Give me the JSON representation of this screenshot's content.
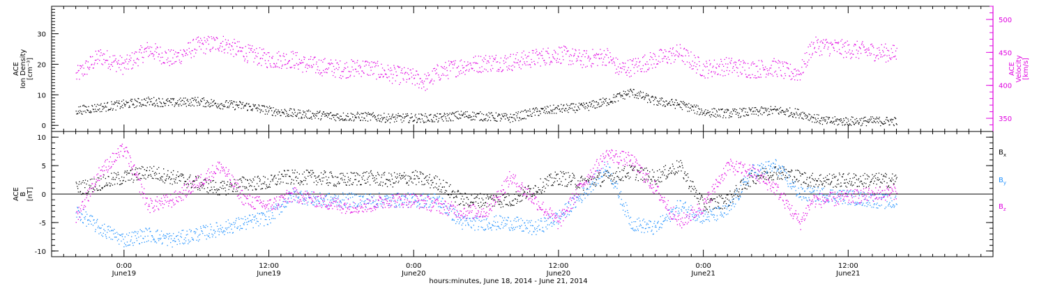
{
  "chart_data": [
    {
      "type": "scatter",
      "panel": "top",
      "left_axis": {
        "label_lines": [
          "ACE",
          "Ion Density",
          "[cm⁻³]"
        ],
        "ylim": [
          -2,
          39
        ],
        "ticks": [
          0,
          10,
          20,
          30
        ],
        "color": "#000000"
      },
      "right_axis": {
        "label_lines": [
          "ACE",
          "Velocity",
          "[km/s]"
        ],
        "ylim": [
          330,
          520
        ],
        "ticks": [
          350,
          400,
          450,
          500
        ],
        "color": "#e000e0"
      },
      "series": [
        {
          "axis": "left",
          "color": "#000000",
          "points": [
            [
              -4,
              5
            ],
            [
              -2,
              6
            ],
            [
              0,
              7
            ],
            [
              2,
              8
            ],
            [
              4,
              7.5
            ],
            [
              6,
              8
            ],
            [
              8,
              7
            ],
            [
              10,
              6.5
            ],
            [
              12,
              5
            ],
            [
              14,
              4
            ],
            [
              16,
              3.5
            ],
            [
              18,
              3
            ],
            [
              20,
              3
            ],
            [
              22,
              2.5
            ],
            [
              24,
              2.5
            ],
            [
              26,
              2.5
            ],
            [
              28,
              3.5
            ],
            [
              30,
              3
            ],
            [
              32,
              2.5
            ],
            [
              34,
              4.5
            ],
            [
              36,
              5.5
            ],
            [
              38,
              6
            ],
            [
              40,
              8
            ],
            [
              42,
              11
            ],
            [
              44,
              8
            ],
            [
              46,
              7
            ],
            [
              48,
              4.5
            ],
            [
              50,
              4
            ],
            [
              52,
              4.5
            ],
            [
              54,
              5
            ],
            [
              56,
              4
            ],
            [
              58,
              1.5
            ],
            [
              60,
              1.5
            ],
            [
              62,
              1.5
            ],
            [
              64,
              1.5
            ]
          ]
        },
        {
          "axis": "right",
          "color": "#e000e0",
          "points": [
            [
              -4,
              415
            ],
            [
              -2,
              445
            ],
            [
              0,
              430
            ],
            [
              2,
              455
            ],
            [
              4,
              440
            ],
            [
              6,
              460
            ],
            [
              8,
              465
            ],
            [
              10,
              450
            ],
            [
              12,
              440
            ],
            [
              14,
              440
            ],
            [
              15,
              432
            ],
            [
              16,
              430
            ],
            [
              18,
              425
            ],
            [
              20,
              428
            ],
            [
              22,
              418
            ],
            [
              24,
              412
            ],
            [
              25,
              405
            ],
            [
              26,
              420
            ],
            [
              28,
              430
            ],
            [
              30,
              435
            ],
            [
              32,
              436
            ],
            [
              34,
              442
            ],
            [
              36,
              448
            ],
            [
              38,
              440
            ],
            [
              40,
              445
            ],
            [
              41,
              425
            ],
            [
              42,
              428
            ],
            [
              44,
              440
            ],
            [
              46,
              450
            ],
            [
              48,
              425
            ],
            [
              50,
              430
            ],
            [
              52,
              425
            ],
            [
              54,
              428
            ],
            [
              55,
              420
            ],
            [
              56,
              420
            ],
            [
              57,
              460
            ],
            [
              58,
              460
            ],
            [
              60,
              455
            ],
            [
              62,
              452
            ],
            [
              64,
              448
            ]
          ]
        }
      ]
    },
    {
      "type": "scatter",
      "panel": "bottom",
      "left_axis": {
        "label_lines": [
          "ACE",
          "B",
          "[nT]"
        ],
        "ylim": [
          -11,
          11
        ],
        "ticks": [
          -10,
          -5,
          0,
          5,
          10
        ],
        "color": "#000000"
      },
      "zero_line": true,
      "legend": [
        {
          "label": "B",
          "sub": "x",
          "color": "#000000"
        },
        {
          "label": "B",
          "sub": "y",
          "color": "#1e90ff"
        },
        {
          "label": "B",
          "sub": "z",
          "color": "#e000e0"
        }
      ],
      "series": [
        {
          "name": "Bx",
          "color": "#000000",
          "points": [
            [
              -4,
              1
            ],
            [
              -2,
              2
            ],
            [
              0,
              3
            ],
            [
              2,
              4
            ],
            [
              4,
              3
            ],
            [
              6,
              2
            ],
            [
              8,
              1
            ],
            [
              10,
              2
            ],
            [
              12,
              2
            ],
            [
              13,
              3
            ],
            [
              14,
              3
            ],
            [
              16,
              3
            ],
            [
              18,
              2.5
            ],
            [
              20,
              3
            ],
            [
              22,
              2.5
            ],
            [
              24,
              3
            ],
            [
              26,
              2
            ],
            [
              28,
              -1
            ],
            [
              30,
              -1
            ],
            [
              32,
              -1
            ],
            [
              34,
              1
            ],
            [
              36,
              3
            ],
            [
              38,
              2
            ],
            [
              40,
              3
            ],
            [
              42,
              4
            ],
            [
              44,
              3
            ],
            [
              46,
              5
            ],
            [
              48,
              -2
            ],
            [
              50,
              -1
            ],
            [
              52,
              3
            ],
            [
              54,
              4
            ],
            [
              56,
              3
            ],
            [
              57,
              2.5
            ],
            [
              58,
              2.5
            ],
            [
              60,
              2.5
            ],
            [
              62,
              2.5
            ],
            [
              64,
              2.5
            ]
          ]
        },
        {
          "name": "By",
          "color": "#1e90ff",
          "points": [
            [
              -4,
              -3
            ],
            [
              -2,
              -6
            ],
            [
              0,
              -8
            ],
            [
              2,
              -7
            ],
            [
              4,
              -8
            ],
            [
              6,
              -7
            ],
            [
              8,
              -6
            ],
            [
              10,
              -5
            ],
            [
              12,
              -4
            ],
            [
              13,
              -2
            ],
            [
              14,
              0
            ],
            [
              16,
              -1
            ],
            [
              18,
              -1
            ],
            [
              20,
              -1
            ],
            [
              22,
              -1
            ],
            [
              24,
              -1
            ],
            [
              26,
              -1
            ],
            [
              28,
              -5
            ],
            [
              30,
              -5
            ],
            [
              32,
              -5
            ],
            [
              34,
              -6
            ],
            [
              36,
              -4
            ],
            [
              38,
              0
            ],
            [
              40,
              5
            ],
            [
              42,
              -5
            ],
            [
              44,
              -6
            ],
            [
              46,
              -2
            ],
            [
              48,
              -4
            ],
            [
              50,
              -3
            ],
            [
              52,
              4
            ],
            [
              54,
              5
            ],
            [
              56,
              0
            ],
            [
              58,
              0
            ],
            [
              60,
              -0.5
            ],
            [
              62,
              -1
            ],
            [
              64,
              -1.5
            ]
          ]
        },
        {
          "name": "Bz",
          "color": "#e000e0",
          "points": [
            [
              -4,
              -4
            ],
            [
              -2,
              4
            ],
            [
              0,
              8
            ],
            [
              2,
              -2
            ],
            [
              4,
              -1
            ],
            [
              6,
              2
            ],
            [
              8,
              5
            ],
            [
              10,
              -1
            ],
            [
              12,
              -2
            ],
            [
              13,
              -1
            ],
            [
              14,
              0
            ],
            [
              16,
              -1
            ],
            [
              18,
              -2
            ],
            [
              20,
              -2
            ],
            [
              22,
              -1
            ],
            [
              24,
              -1
            ],
            [
              26,
              -2
            ],
            [
              28,
              -3
            ],
            [
              30,
              -3
            ],
            [
              32,
              3
            ],
            [
              34,
              -1
            ],
            [
              36,
              -5
            ],
            [
              38,
              2
            ],
            [
              40,
              7
            ],
            [
              42,
              6
            ],
            [
              44,
              1
            ],
            [
              46,
              -5
            ],
            [
              48,
              -2
            ],
            [
              50,
              5
            ],
            [
              52,
              4
            ],
            [
              54,
              1
            ],
            [
              56,
              -5
            ],
            [
              57,
              -1
            ],
            [
              58,
              -1
            ],
            [
              60,
              -0.5
            ],
            [
              62,
              0
            ],
            [
              64,
              0.5
            ]
          ]
        }
      ]
    }
  ],
  "x_axis": {
    "xlim": [
      -6,
      72
    ],
    "major_ticks": [
      0,
      12,
      24,
      36,
      48,
      60
    ],
    "tick_labels": [
      {
        "time": "0:00",
        "date": "June19"
      },
      {
        "time": "12:00",
        "date": "June19"
      },
      {
        "time": "0:00",
        "date": "June20"
      },
      {
        "time": "12:00",
        "date": "June20"
      },
      {
        "time": "0:00",
        "date": "June21"
      },
      {
        "time": "12:00",
        "date": "June21"
      }
    ],
    "title": "hours:minutes, June 18, 2014 - June 21, 2014"
  },
  "colors": {
    "black": "#000000",
    "magenta": "#e000e0",
    "blue": "#1e90ff"
  }
}
